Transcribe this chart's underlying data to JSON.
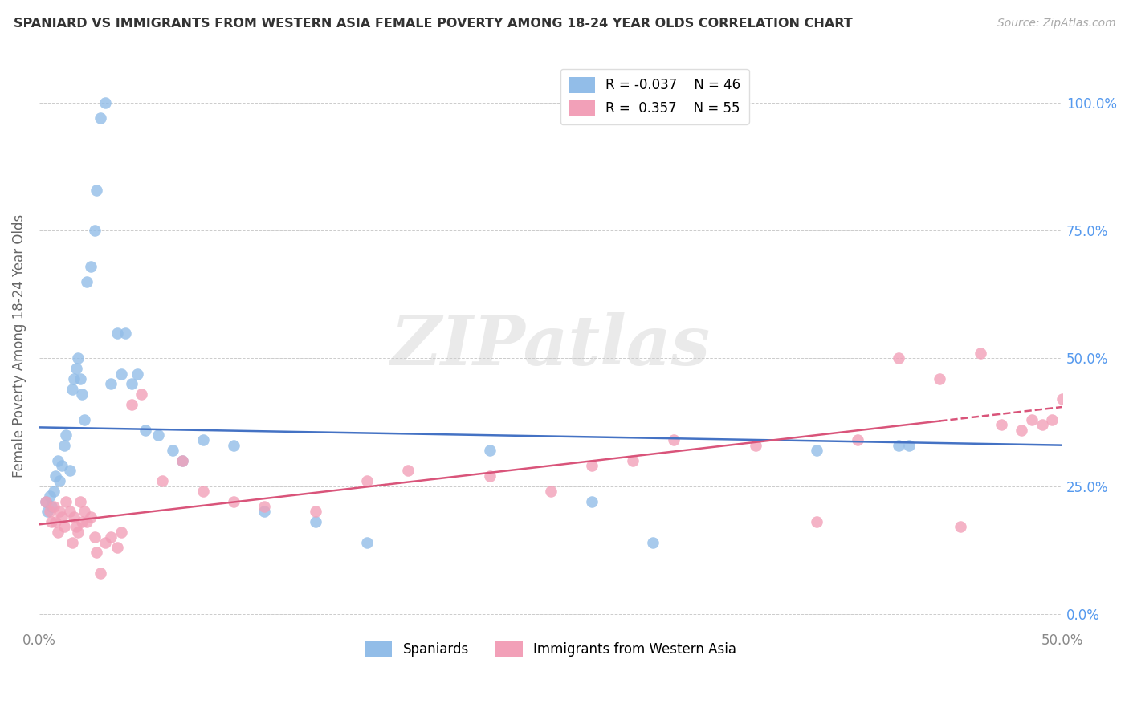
{
  "title": "SPANIARD VS IMMIGRANTS FROM WESTERN ASIA FEMALE POVERTY AMONG 18-24 YEAR OLDS CORRELATION CHART",
  "source": "Source: ZipAtlas.com",
  "ylabel": "Female Poverty Among 18-24 Year Olds",
  "yticks": [
    "0.0%",
    "25.0%",
    "50.0%",
    "75.0%",
    "100.0%"
  ],
  "ytick_vals": [
    0,
    25,
    50,
    75,
    100
  ],
  "xtick_labels": [
    "0.0%",
    "50.0%"
  ],
  "xtick_vals": [
    0,
    50
  ],
  "xlim": [
    0,
    50
  ],
  "ylim": [
    -3,
    108
  ],
  "legend_r1": "R = -0.037",
  "legend_n1": "N = 46",
  "legend_r2": "R =  0.357",
  "legend_n2": "N = 55",
  "blue_color": "#92BDE8",
  "pink_color": "#F2A0B8",
  "line_blue": "#4472C4",
  "line_pink": "#D9547A",
  "watermark_text": "ZIPatlas",
  "spaniards_x": [
    0.3,
    0.4,
    0.5,
    0.6,
    0.7,
    0.8,
    0.9,
    1.0,
    1.1,
    1.2,
    1.3,
    1.5,
    1.6,
    1.7,
    1.8,
    1.9,
    2.0,
    2.1,
    2.2,
    2.3,
    2.5,
    2.7,
    2.8,
    3.0,
    3.2,
    3.5,
    3.8,
    4.0,
    4.2,
    4.5,
    4.8,
    5.2,
    5.8,
    6.5,
    7.0,
    8.0,
    9.5,
    11.0,
    13.5,
    16.0,
    22.0,
    27.0,
    30.0,
    38.0,
    42.0,
    42.5
  ],
  "spaniards_y": [
    22,
    20,
    23,
    21,
    24,
    27,
    30,
    26,
    29,
    33,
    35,
    28,
    44,
    46,
    48,
    50,
    46,
    43,
    38,
    65,
    68,
    75,
    83,
    97,
    100,
    45,
    55,
    47,
    55,
    45,
    47,
    36,
    35,
    32,
    30,
    34,
    33,
    20,
    18,
    14,
    32,
    22,
    14,
    32,
    33,
    33
  ],
  "immigrants_x": [
    0.3,
    0.5,
    0.6,
    0.7,
    0.8,
    0.9,
    1.0,
    1.1,
    1.2,
    1.3,
    1.5,
    1.6,
    1.7,
    1.8,
    1.9,
    2.0,
    2.1,
    2.2,
    2.3,
    2.5,
    2.7,
    2.8,
    3.0,
    3.2,
    3.5,
    3.8,
    4.0,
    4.5,
    5.0,
    6.0,
    7.0,
    8.0,
    9.5,
    11.0,
    13.5,
    16.0,
    18.0,
    22.0,
    25.0,
    27.0,
    29.0,
    31.0,
    35.0,
    38.0,
    40.0,
    42.0,
    44.0,
    45.0,
    46.0,
    47.0,
    48.0,
    48.5,
    49.0,
    49.5,
    50.0
  ],
  "immigrants_y": [
    22,
    20,
    18,
    21,
    18,
    16,
    20,
    19,
    17,
    22,
    20,
    14,
    19,
    17,
    16,
    22,
    18,
    20,
    18,
    19,
    15,
    12,
    8,
    14,
    15,
    13,
    16,
    41,
    43,
    26,
    30,
    24,
    22,
    21,
    20,
    26,
    28,
    27,
    24,
    29,
    30,
    34,
    33,
    18,
    34,
    50,
    46,
    17,
    51,
    37,
    36,
    38,
    37,
    38,
    42
  ],
  "blue_line_x0": 0,
  "blue_line_y0": 36.5,
  "blue_line_x1": 50,
  "blue_line_y1": 33.0,
  "pink_line_x0": 0,
  "pink_line_y0": 17.5,
  "pink_line_x1": 50,
  "pink_line_y1": 40.5,
  "pink_dashed_start_x": 44,
  "legend1_label": "Spaniards",
  "legend2_label": "Immigrants from Western Asia"
}
